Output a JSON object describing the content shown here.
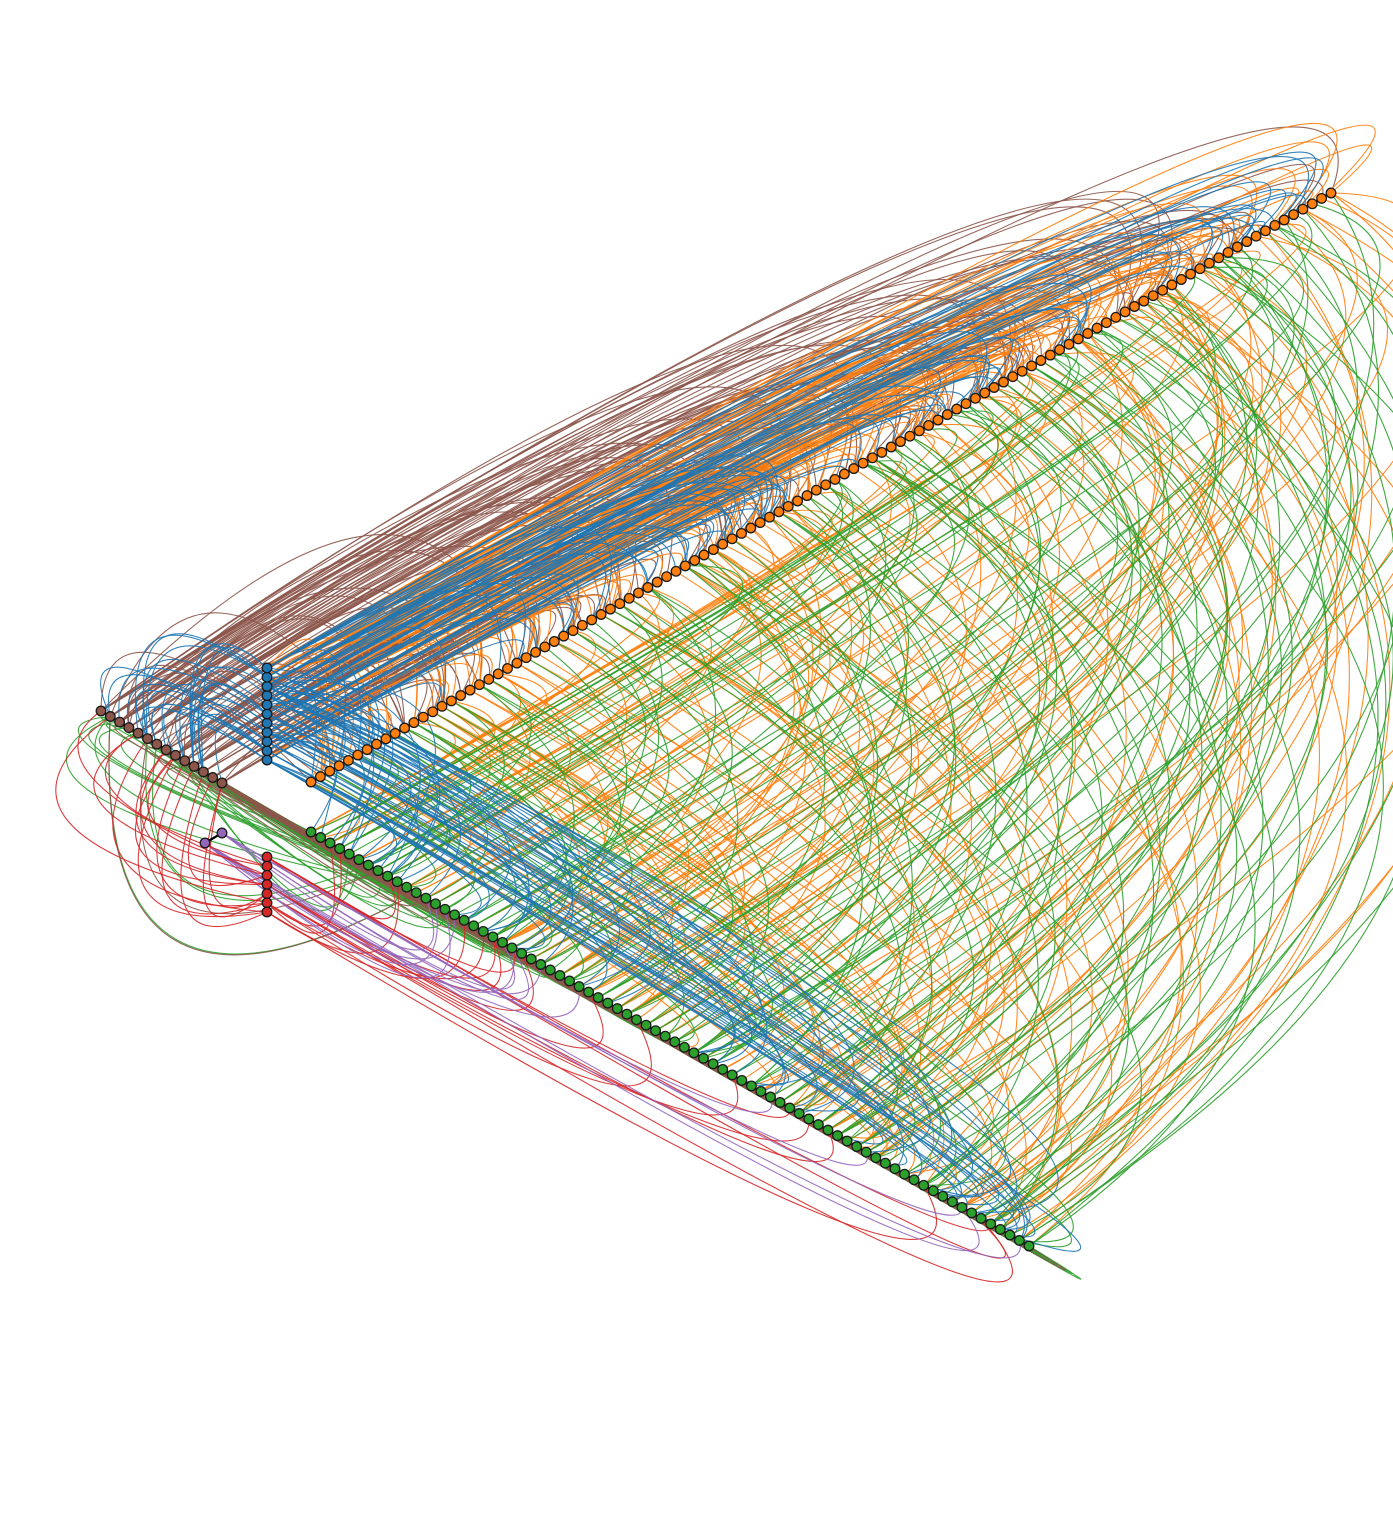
{
  "diagram": {
    "type": "hive-plot",
    "background": "#ffffff",
    "node_outline": "#1a1a1a",
    "axes": [
      {
        "id": "blue-axis",
        "color": "#1f77b4",
        "nodes": 11
      },
      {
        "id": "orange-axis",
        "color": "#ff7f0e",
        "nodes": 110
      },
      {
        "id": "green-axis",
        "color": "#2ca02c",
        "nodes": 76
      },
      {
        "id": "red-axis",
        "color": "#d62728",
        "nodes": 7
      },
      {
        "id": "purple-axis",
        "color": "#9467bd",
        "nodes": 2
      },
      {
        "id": "brown-axis",
        "color": "#8c564b",
        "nodes": 14
      }
    ],
    "edge_groups": [
      {
        "from": "brown-axis",
        "to": "orange-axis",
        "color": "#8c564b",
        "count": 140
      },
      {
        "from": "blue-axis",
        "to": "orange-axis",
        "color": "#ff7f0e",
        "count": 160
      },
      {
        "from": "blue-axis",
        "to": "orange-axis",
        "color": "#1f77b4",
        "count": 90
      },
      {
        "from": "orange-axis",
        "to": "green-axis",
        "color": "#ff7f0e",
        "count": 170
      },
      {
        "from": "orange-axis",
        "to": "green-axis",
        "color": "#2ca02c",
        "count": 150
      },
      {
        "from": "blue-axis",
        "to": "green-axis",
        "color": "#1f77b4",
        "count": 70
      },
      {
        "from": "green-axis",
        "to": "brown-axis",
        "color": "#2ca02c",
        "count": 150
      },
      {
        "from": "green-axis",
        "to": "brown-axis",
        "color": "#8c564b",
        "count": 70
      },
      {
        "from": "red-axis",
        "to": "green-axis",
        "color": "#d62728",
        "count": 20
      },
      {
        "from": "purple-axis",
        "to": "green-axis",
        "color": "#9467bd",
        "count": 14
      },
      {
        "from": "brown-axis",
        "to": "blue-axis",
        "color": "#1f77b4",
        "count": 30
      },
      {
        "from": "brown-axis",
        "to": "red-axis",
        "color": "#d62728",
        "count": 16
      }
    ]
  }
}
